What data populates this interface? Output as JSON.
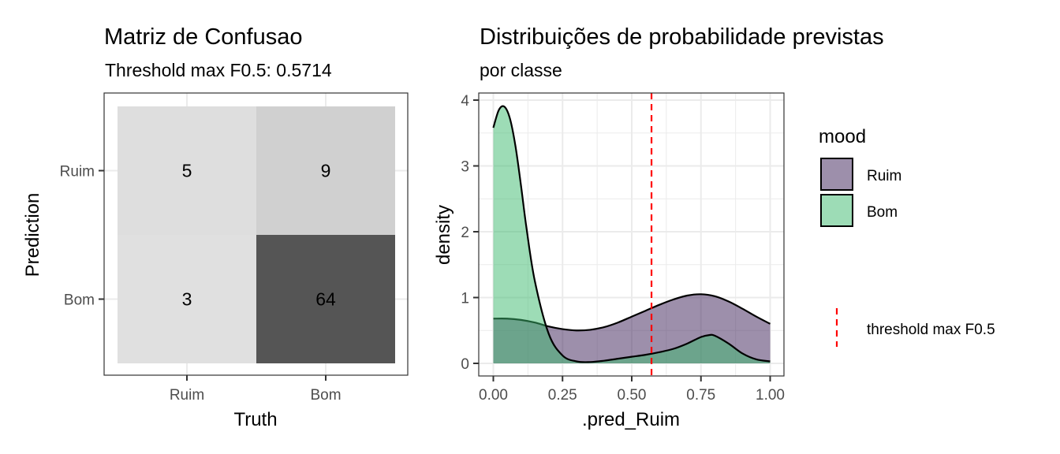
{
  "chart_data": [
    {
      "type": "heatmap",
      "title": "Matriz de Confusao",
      "subtitle": "Threshold max F0.5: 0.5714",
      "xlabel": "Truth",
      "ylabel": "Prediction",
      "x_categories": [
        "Ruim",
        "Bom"
      ],
      "y_categories": [
        "Ruim",
        "Bom"
      ],
      "cells": [
        {
          "truth": "Ruim",
          "prediction": "Ruim",
          "value": 5,
          "fill": "#dedede"
        },
        {
          "truth": "Bom",
          "prediction": "Ruim",
          "value": 9,
          "fill": "#d0d0d0"
        },
        {
          "truth": "Ruim",
          "prediction": "Bom",
          "value": 3,
          "fill": "#e0e0e0"
        },
        {
          "truth": "Bom",
          "prediction": "Bom",
          "value": 64,
          "fill": "#555555"
        }
      ],
      "grid": true
    },
    {
      "type": "area",
      "title": "Distribuições de probabilidade previstas",
      "subtitle": "por classe",
      "xlabel": ".pred_Ruim",
      "ylabel": "density",
      "xlim": [
        0,
        1
      ],
      "ylim": [
        0,
        4
      ],
      "x_ticks": [
        "0.00",
        "0.25",
        "0.50",
        "0.75",
        "1.00"
      ],
      "y_ticks": [
        "0",
        "1",
        "2",
        "3",
        "4"
      ],
      "grid": true,
      "legend": {
        "title": "mood",
        "placement": "right",
        "entries": [
          "Ruim",
          "Bom"
        ],
        "line_entry": "threshold max F0.5"
      },
      "series": [
        {
          "name": "Ruim",
          "color": "#3b1f57",
          "opacity": 0.5,
          "x": [
            0.0,
            0.05,
            0.1,
            0.15,
            0.2,
            0.25,
            0.3,
            0.35,
            0.4,
            0.45,
            0.5,
            0.55,
            0.6,
            0.65,
            0.7,
            0.75,
            0.8,
            0.85,
            0.9,
            0.95,
            1.0
          ],
          "y": [
            0.68,
            0.68,
            0.66,
            0.62,
            0.56,
            0.52,
            0.5,
            0.51,
            0.55,
            0.62,
            0.71,
            0.8,
            0.89,
            0.97,
            1.03,
            1.05,
            1.02,
            0.94,
            0.83,
            0.71,
            0.6
          ]
        },
        {
          "name": "Bom",
          "color": "#3cb96e",
          "opacity": 0.5,
          "x": [
            0.0,
            0.02,
            0.04,
            0.06,
            0.08,
            0.1,
            0.12,
            0.15,
            0.2,
            0.25,
            0.3,
            0.35,
            0.4,
            0.45,
            0.5,
            0.55,
            0.6,
            0.65,
            0.7,
            0.75,
            0.78,
            0.8,
            0.85,
            0.9,
            0.95,
            1.0
          ],
          "y": [
            3.58,
            3.85,
            3.9,
            3.72,
            3.3,
            2.7,
            2.05,
            1.25,
            0.45,
            0.12,
            0.03,
            0.02,
            0.04,
            0.07,
            0.1,
            0.13,
            0.17,
            0.22,
            0.3,
            0.4,
            0.43,
            0.42,
            0.3,
            0.15,
            0.06,
            0.03
          ]
        }
      ],
      "threshold": {
        "name": "threshold max F0.5",
        "x": 0.5714,
        "color": "#ff0000"
      }
    }
  ]
}
